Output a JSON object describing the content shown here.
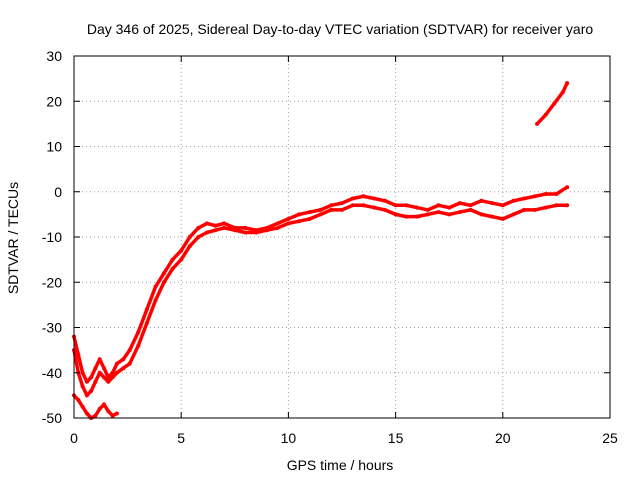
{
  "chart_data": {
    "type": "line",
    "title": "Day 346 of 2025, Sidereal Day-to-day VTEC variation (SDTVAR) for receiver yaro",
    "xlabel": "GPS time / hours",
    "ylabel": "SDTVAR / TECUs",
    "xlim": [
      0,
      25
    ],
    "ylim": [
      -50,
      30
    ],
    "xticks": [
      0,
      5,
      10,
      15,
      20,
      25
    ],
    "yticks": [
      -50,
      -40,
      -30,
      -20,
      -10,
      0,
      10,
      20,
      30
    ],
    "grid": true,
    "color": "#ff0000",
    "series": [
      {
        "name": "arc-main-upper",
        "x": [
          0.0,
          0.2,
          0.4,
          0.6,
          0.8,
          1.0,
          1.2,
          1.4,
          1.6,
          1.8,
          2.0,
          2.3,
          2.6,
          3.0,
          3.4,
          3.8,
          4.2,
          4.6,
          5.0,
          5.4,
          5.8,
          6.2,
          6.6,
          7.0,
          7.5,
          8.0,
          8.5,
          9.0,
          9.5,
          10.0,
          10.5,
          11.0,
          11.5,
          12.0,
          12.5,
          13.0,
          13.5,
          14.0,
          14.5,
          15.0,
          15.5,
          16.0,
          16.5,
          17.0,
          17.5,
          18.0,
          18.5,
          19.0,
          19.5,
          20.0,
          20.5,
          21.0,
          21.5,
          22.0,
          22.5,
          23.0
        ],
        "y": [
          -32,
          -36,
          -40,
          -42,
          -41,
          -39,
          -37,
          -39,
          -41,
          -40,
          -38,
          -37,
          -35,
          -31,
          -26,
          -21,
          -18,
          -15,
          -13,
          -10,
          -8,
          -7,
          -7.5,
          -7,
          -8,
          -8,
          -8.5,
          -8,
          -7,
          -6,
          -5,
          -4.5,
          -4,
          -3,
          -2.5,
          -1.5,
          -1,
          -1.5,
          -2,
          -3,
          -3,
          -3.5,
          -4,
          -3,
          -3.5,
          -2.5,
          -3,
          -2,
          -2.5,
          -3,
          -2,
          -1.5,
          -1,
          -0.5,
          -0.5,
          1
        ]
      },
      {
        "name": "arc-main-lower",
        "x": [
          0.0,
          0.2,
          0.4,
          0.6,
          0.8,
          1.0,
          1.2,
          1.4,
          1.6,
          1.8,
          2.0,
          2.3,
          2.6,
          3.0,
          3.4,
          3.8,
          4.2,
          4.6,
          5.0,
          5.4,
          5.8,
          6.2,
          6.6,
          7.0,
          7.5,
          8.0,
          8.5,
          9.0,
          9.5,
          10.0,
          10.5,
          11.0,
          11.5,
          12.0,
          12.5,
          13.0,
          13.5,
          14.0,
          14.5,
          15.0,
          15.5,
          16.0,
          16.5,
          17.0,
          17.5,
          18.0,
          18.5,
          19.0,
          19.5,
          20.0,
          20.5,
          21.0,
          21.5,
          22.0,
          22.5,
          23.0
        ],
        "y": [
          -35,
          -40,
          -43,
          -45,
          -44,
          -42,
          -40,
          -41,
          -42,
          -41,
          -40,
          -39,
          -38,
          -34,
          -29,
          -24,
          -20,
          -17,
          -15,
          -12,
          -10,
          -9,
          -8.5,
          -8,
          -8.5,
          -9,
          -9,
          -8.5,
          -8,
          -7,
          -6.5,
          -6,
          -5,
          -4,
          -4,
          -3,
          -3,
          -3.5,
          -4,
          -5,
          -5.5,
          -5.5,
          -5,
          -4.5,
          -5,
          -4.5,
          -4,
          -5,
          -5.5,
          -6,
          -5,
          -4,
          -4,
          -3.5,
          -3,
          -3
        ]
      },
      {
        "name": "arc-early-low",
        "x": [
          0.0,
          0.2,
          0.4,
          0.6,
          0.8,
          1.0,
          1.2,
          1.4,
          1.6,
          1.8,
          2.0
        ],
        "y": [
          -45,
          -46,
          -47.5,
          -49,
          -50,
          -49.5,
          -48,
          -47,
          -48.5,
          -49.5,
          -49
        ]
      },
      {
        "name": "arc-late",
        "x": [
          21.6,
          22.0,
          22.4,
          22.8,
          23.0
        ],
        "y": [
          15,
          17,
          19.5,
          22,
          24
        ]
      }
    ]
  }
}
